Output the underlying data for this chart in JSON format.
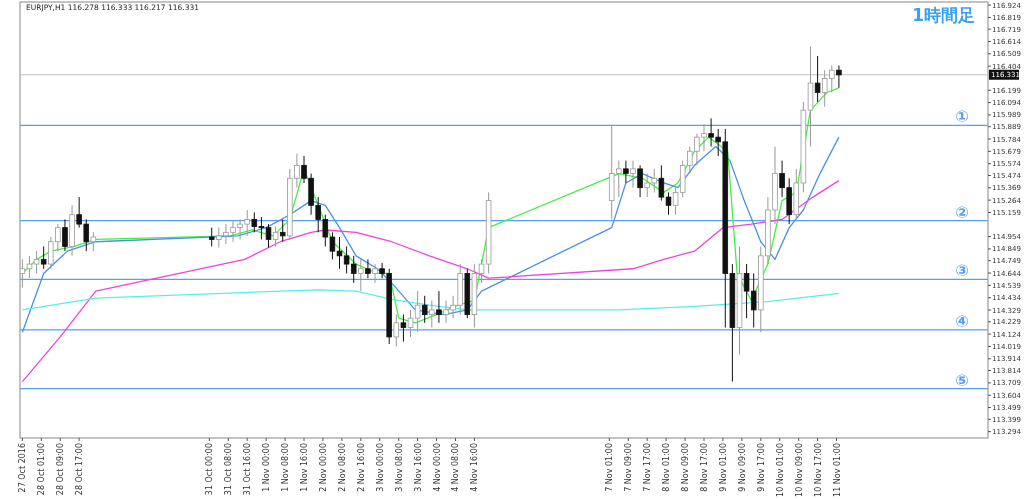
{
  "chart_data": {
    "type": "candlestick",
    "title": "EURJPY,H1  116.278 116.333 116.217 116.331",
    "annotations": [
      "1時間足"
    ],
    "x": [
      "2016-10-27T17:00",
      "2016-10-27T20:00",
      "2016-10-27T23:00",
      "2016-10-28T02:00",
      "2016-10-28T05:00",
      "2016-10-28T08:00",
      "2016-10-28T11:00",
      "2016-10-28T14:00",
      "2016-10-28T17:00",
      "2016-10-28T20:00",
      "2016-10-28T23:00",
      "2016-10-31T01:00",
      "2016-10-31T04:00",
      "2016-10-31T07:00",
      "2016-10-31T10:00",
      "2016-10-31T13:00",
      "2016-10-31T16:00",
      "2016-10-31T19:00",
      "2016-10-31T22:00",
      "2016-11-01T01:00",
      "2016-11-01T04:00",
      "2016-11-01T07:00",
      "2016-11-01T10:00",
      "2016-11-01T13:00",
      "2016-11-01T16:00",
      "2016-11-01T19:00",
      "2016-11-01T22:00",
      "2016-11-02T01:00",
      "2016-11-02T04:00",
      "2016-11-02T07:00",
      "2016-11-02T10:00",
      "2016-11-02T13:00",
      "2016-11-02T16:00",
      "2016-11-02T19:00",
      "2016-11-02T22:00",
      "2016-11-03T01:00",
      "2016-11-03T04:00",
      "2016-11-03T07:00",
      "2016-11-03T10:00",
      "2016-11-03T13:00",
      "2016-11-03T16:00",
      "2016-11-03T19:00",
      "2016-11-03T22:00",
      "2016-11-04T01:00",
      "2016-11-04T04:00",
      "2016-11-04T07:00",
      "2016-11-04T10:00",
      "2016-11-04T13:00",
      "2016-11-04T16:00",
      "2016-11-04T19:00",
      "2016-11-04T22:00",
      "2016-11-07T02:00",
      "2016-11-07T05:00",
      "2016-11-07T08:00",
      "2016-11-07T11:00",
      "2016-11-07T14:00",
      "2016-11-07T17:00",
      "2016-11-07T20:00",
      "2016-11-07T23:00",
      "2016-11-08T02:00",
      "2016-11-08T05:00",
      "2016-11-08T08:00",
      "2016-11-08T11:00",
      "2016-11-08T14:00",
      "2016-11-08T17:00",
      "2016-11-08T20:00",
      "2016-11-08T23:00",
      "2016-11-09T02:00",
      "2016-11-09T05:00",
      "2016-11-09T08:00",
      "2016-11-09T11:00",
      "2016-11-09T14:00",
      "2016-11-09T17:00",
      "2016-11-09T20:00",
      "2016-11-09T23:00",
      "2016-11-10T02:00",
      "2016-11-10T05:00",
      "2016-11-10T08:00",
      "2016-11-10T11:00",
      "2016-11-10T14:00",
      "2016-11-10T17:00",
      "2016-11-10T20:00",
      "2016-11-10T23:00",
      "2016-11-11T02:00"
    ],
    "ohlc": [
      [
        114.64,
        114.76,
        114.52,
        114.68
      ],
      [
        114.68,
        114.79,
        114.6,
        114.72
      ],
      [
        114.72,
        114.83,
        114.64,
        114.76
      ],
      [
        114.76,
        114.87,
        114.68,
        114.72
      ],
      [
        114.72,
        114.95,
        114.68,
        114.91
      ],
      [
        114.91,
        115.06,
        114.83,
        115.03
      ],
      [
        115.03,
        115.1,
        114.83,
        114.87
      ],
      [
        114.87,
        115.22,
        114.79,
        115.14
      ],
      [
        115.14,
        115.29,
        115.03,
        115.06
      ],
      [
        115.06,
        115.1,
        114.83,
        114.91
      ],
      [
        114.91,
        114.99,
        114.83,
        114.95
      ],
      [
        114.95,
        115.03,
        114.87,
        114.93
      ],
      [
        114.93,
        115.03,
        114.86,
        114.96
      ],
      [
        114.96,
        115.06,
        114.89,
        114.99
      ],
      [
        114.99,
        115.09,
        114.91,
        115.03
      ],
      [
        115.03,
        115.1,
        114.93,
        115.06
      ],
      [
        115.06,
        115.18,
        114.96,
        115.1
      ],
      [
        115.1,
        115.16,
        114.99,
        115.04
      ],
      [
        115.04,
        115.12,
        114.93,
        115.03
      ],
      [
        115.03,
        115.06,
        114.86,
        114.93
      ],
      [
        114.93,
        115.04,
        114.87,
        114.99
      ],
      [
        114.99,
        115.1,
        114.91,
        114.96
      ],
      [
        114.96,
        115.53,
        114.93,
        115.45
      ],
      [
        115.45,
        115.66,
        115.37,
        115.56
      ],
      [
        115.56,
        115.64,
        115.41,
        115.45
      ],
      [
        115.45,
        115.49,
        115.14,
        115.22
      ],
      [
        115.22,
        115.29,
        114.99,
        115.1
      ],
      [
        115.1,
        115.14,
        114.87,
        114.95
      ],
      [
        114.95,
        114.99,
        114.76,
        114.83
      ],
      [
        114.83,
        114.95,
        114.68,
        114.79
      ],
      [
        114.79,
        114.87,
        114.64,
        114.72
      ],
      [
        114.72,
        114.79,
        114.56,
        114.64
      ],
      [
        114.64,
        114.76,
        114.49,
        114.68
      ],
      [
        114.68,
        114.76,
        114.6,
        114.64
      ],
      [
        114.64,
        114.72,
        114.56,
        114.68
      ],
      [
        114.68,
        114.73,
        114.6,
        114.64
      ],
      [
        114.64,
        114.68,
        114.04,
        114.1
      ],
      [
        114.1,
        114.29,
        114.02,
        114.22
      ],
      [
        114.22,
        114.29,
        114.06,
        114.18
      ],
      [
        114.18,
        114.33,
        114.1,
        114.26
      ],
      [
        114.26,
        114.49,
        114.14,
        114.37
      ],
      [
        114.37,
        114.45,
        114.22,
        114.29
      ],
      [
        114.29,
        114.41,
        114.18,
        114.33
      ],
      [
        114.33,
        114.49,
        114.22,
        114.29
      ],
      [
        114.29,
        114.41,
        114.22,
        114.33
      ],
      [
        114.33,
        114.45,
        114.26,
        114.37
      ],
      [
        114.37,
        114.72,
        114.29,
        114.64
      ],
      [
        114.64,
        114.68,
        114.26,
        114.29
      ],
      [
        114.29,
        114.72,
        114.18,
        114.64
      ],
      [
        114.64,
        114.76,
        114.56,
        114.72
      ],
      [
        114.72,
        115.33,
        114.64,
        115.26
      ],
      [
        115.26,
        115.9,
        115.1,
        115.49
      ],
      [
        115.49,
        115.6,
        115.29,
        115.53
      ],
      [
        115.53,
        115.6,
        115.41,
        115.49
      ],
      [
        115.49,
        115.6,
        115.37,
        115.53
      ],
      [
        115.53,
        115.56,
        115.29,
        115.37
      ],
      [
        115.37,
        115.49,
        115.29,
        115.41
      ],
      [
        115.41,
        115.53,
        115.33,
        115.45
      ],
      [
        115.45,
        115.56,
        115.26,
        115.29
      ],
      [
        115.29,
        115.33,
        115.14,
        115.22
      ],
      [
        115.22,
        115.37,
        115.14,
        115.33
      ],
      [
        115.33,
        115.6,
        115.29,
        115.56
      ],
      [
        115.56,
        115.72,
        115.49,
        115.68
      ],
      [
        115.68,
        115.83,
        115.56,
        115.8
      ],
      [
        115.8,
        115.91,
        115.68,
        115.83
      ],
      [
        115.83,
        115.96,
        115.72,
        115.8
      ],
      [
        115.8,
        115.87,
        115.64,
        115.76
      ],
      [
        115.76,
        115.87,
        114.18,
        114.64
      ],
      [
        114.64,
        114.72,
        113.72,
        114.18
      ],
      [
        114.18,
        114.87,
        113.95,
        114.64
      ],
      [
        114.64,
        114.72,
        114.26,
        114.49
      ],
      [
        114.49,
        114.64,
        114.18,
        114.33
      ],
      [
        114.33,
        114.87,
        114.14,
        114.79
      ],
      [
        114.79,
        115.29,
        114.72,
        115.18
      ],
      [
        115.18,
        115.72,
        115.06,
        115.49
      ],
      [
        115.49,
        115.6,
        115.29,
        115.37
      ],
      [
        115.37,
        115.45,
        115.06,
        115.14
      ],
      [
        115.14,
        115.53,
        115.1,
        115.41
      ],
      [
        115.41,
        116.1,
        115.33,
        116.03
      ],
      [
        116.03,
        116.57,
        115.72,
        116.26
      ],
      [
        116.26,
        116.49,
        116.1,
        116.18
      ],
      [
        116.18,
        116.37,
        116.06,
        116.3
      ],
      [
        116.3,
        116.41,
        116.18,
        116.37
      ],
      [
        116.37,
        116.41,
        116.22,
        116.33
      ]
    ],
    "series": [
      {
        "type": "line",
        "color": "#44ee44",
        "x": [
          "2016-10-27T17:00",
          "2016-10-27T23:00",
          "2016-10-28T05:00",
          "2016-10-28T15:00",
          "2016-10-29T00:00",
          "2016-10-31T09:00",
          "2016-10-31T18:00",
          "2016-11-01T03:00",
          "2016-11-01T10:00",
          "2016-11-01T16:00",
          "2016-11-01T22:00",
          "2016-11-02T04:00",
          "2016-11-02T14:00",
          "2016-11-02T23:00",
          "2016-11-03T04:00",
          "2016-11-03T08:00",
          "2016-11-03T15:00",
          "2016-11-04T00:00",
          "2016-11-04T09:00",
          "2016-11-04T16:00",
          "2016-11-04T22:00",
          "2016-11-07T05:00",
          "2016-11-07T15:00",
          "2016-11-08T00:00",
          "2016-11-08T06:00",
          "2016-11-08T13:00",
          "2016-11-08T19:00",
          "2016-11-09T03:00",
          "2016-11-09T07:00",
          "2016-11-09T13:00",
          "2016-11-09T20:00",
          "2016-11-10T02:00",
          "2016-11-10T08:00",
          "2016-11-10T14:00",
          "2016-11-10T21:00",
          "2016-11-11T02:00"
        ],
        "values": [
          114.64,
          114.76,
          114.83,
          114.87,
          114.93,
          114.96,
          115.01,
          114.96,
          115.1,
          115.53,
          115.22,
          114.91,
          114.72,
          114.64,
          114.64,
          114.26,
          114.22,
          114.29,
          114.37,
          114.41,
          115.03,
          115.49,
          115.45,
          115.33,
          115.41,
          115.68,
          115.8,
          115.68,
          114.64,
          114.41,
          114.72,
          115.26,
          115.33,
          116.03,
          116.18,
          116.22
        ]
      },
      {
        "type": "line",
        "color": "#4a90e8",
        "x": [
          "2016-10-27T17:00",
          "2016-10-28T02:00",
          "2016-10-28T12:00",
          "2016-10-29T00:00",
          "2016-10-31T12:00",
          "2016-11-01T00:00",
          "2016-11-01T10:00",
          "2016-11-01T19:00",
          "2016-11-02T01:00",
          "2016-11-02T07:00",
          "2016-11-02T14:00",
          "2016-11-02T23:00",
          "2016-11-03T05:00",
          "2016-11-03T15:00",
          "2016-11-04T03:00",
          "2016-11-04T13:00",
          "2016-11-04T19:00",
          "2016-11-07T02:00",
          "2016-11-07T08:00",
          "2016-11-07T15:00",
          "2016-11-08T00:00",
          "2016-11-08T06:00",
          "2016-11-08T13:00",
          "2016-11-08T22:00",
          "2016-11-09T04:00",
          "2016-11-09T10:00",
          "2016-11-09T17:00",
          "2016-11-09T23:00",
          "2016-11-10T05:00",
          "2016-11-10T11:00",
          "2016-11-10T18:00",
          "2016-11-11T02:00"
        ],
        "values": [
          114.14,
          114.64,
          114.83,
          114.91,
          114.96,
          115.03,
          115.14,
          115.26,
          115.22,
          115.03,
          114.79,
          114.68,
          114.56,
          114.33,
          114.29,
          114.33,
          114.49,
          115.03,
          115.41,
          115.49,
          115.41,
          115.37,
          115.56,
          115.72,
          115.6,
          115.26,
          114.91,
          114.76,
          115.03,
          115.18,
          115.49,
          115.8
        ]
      },
      {
        "type": "line",
        "color": "#ee44dd",
        "x": [
          "2016-10-27T17:00",
          "2016-10-28T09:00",
          "2016-10-29T00:00",
          "2016-10-31T15:00",
          "2016-11-01T06:00",
          "2016-11-01T19:00",
          "2016-11-02T01:00",
          "2016-11-02T14:00",
          "2016-11-03T05:00",
          "2016-11-03T21:00",
          "2016-11-04T13:00",
          "2016-11-04T22:00",
          "2016-11-07T11:00",
          "2016-11-08T00:00",
          "2016-11-08T13:00",
          "2016-11-09T01:00",
          "2016-11-09T13:00",
          "2016-11-10T02:00",
          "2016-11-10T15:00",
          "2016-11-11T02:00"
        ],
        "values": [
          113.72,
          114.1,
          114.49,
          114.76,
          114.91,
          114.99,
          115.01,
          114.99,
          114.91,
          114.79,
          114.68,
          114.6,
          114.68,
          114.76,
          114.83,
          115.03,
          115.06,
          115.1,
          115.29,
          115.43
        ]
      },
      {
        "type": "line",
        "color": "#55eeee",
        "x": [
          "2016-10-27T17:00",
          "2016-10-29T00:00",
          "2016-11-01T06:00",
          "2016-11-01T22:00",
          "2016-11-02T14:00",
          "2016-11-03T05:00",
          "2016-11-03T21:00",
          "2016-11-04T13:00",
          "2016-11-07T05:00",
          "2016-11-08T13:00",
          "2016-11-09T20:00",
          "2016-11-11T02:00"
        ],
        "values": [
          114.33,
          114.43,
          114.49,
          114.5,
          114.49,
          114.42,
          114.37,
          114.33,
          114.33,
          114.36,
          114.4,
          114.47
        ]
      }
    ],
    "ylim": [
      113.24,
      116.95
    ],
    "yticks": [
      116.924,
      116.819,
      116.719,
      116.614,
      116.509,
      116.404,
      116.199,
      116.094,
      115.989,
      115.889,
      115.784,
      115.679,
      115.574,
      115.474,
      115.369,
      115.264,
      115.159,
      114.954,
      114.849,
      114.749,
      114.644,
      114.539,
      114.434,
      114.329,
      114.229,
      114.124,
      114.019,
      113.914,
      113.814,
      113.709,
      113.604,
      113.499,
      113.399,
      113.294
    ],
    "xlim": [
      "2016-10-27T16:00",
      "2016-11-13T17:00"
    ],
    "xticks": [
      {
        "value": "2016-10-27T17:00",
        "label": "27 Oct 2016"
      },
      {
        "value": "2016-10-28T01:00",
        "label": "28 Oct 01:00"
      },
      {
        "value": "2016-10-28T09:00",
        "label": "28 Oct 09:00"
      },
      {
        "value": "2016-10-28T17:00",
        "label": "28 Oct 17:00"
      },
      {
        "value": "2016-10-31T00:00",
        "label": "31 Oct 00:00"
      },
      {
        "value": "2016-10-31T08:00",
        "label": "31 Oct 08:00"
      },
      {
        "value": "2016-10-31T16:00",
        "label": "31 Oct 16:00"
      },
      {
        "value": "2016-11-01T00:00",
        "label": "1 Nov 00:00"
      },
      {
        "value": "2016-11-01T08:00",
        "label": "1 Nov 08:00"
      },
      {
        "value": "2016-11-01T16:00",
        "label": "1 Nov 16:00"
      },
      {
        "value": "2016-11-02T00:00",
        "label": "2 Nov 00:00"
      },
      {
        "value": "2016-11-02T08:00",
        "label": "2 Nov 08:00"
      },
      {
        "value": "2016-11-02T16:00",
        "label": "2 Nov 16:00"
      },
      {
        "value": "2016-11-03T00:00",
        "label": "3 Nov 00:00"
      },
      {
        "value": "2016-11-03T08:00",
        "label": "3 Nov 08:00"
      },
      {
        "value": "2016-11-03T16:00",
        "label": "3 Nov 16:00"
      },
      {
        "value": "2016-11-04T00:00",
        "label": "4 Nov 00:00"
      },
      {
        "value": "2016-11-04T08:00",
        "label": "4 Nov 08:00"
      },
      {
        "value": "2016-11-04T16:00",
        "label": "4 Nov 16:00"
      },
      {
        "value": "2016-11-07T01:00",
        "label": "7 Nov 01:00"
      },
      {
        "value": "2016-11-07T09:00",
        "label": "7 Nov 09:00"
      },
      {
        "value": "2016-11-07T17:00",
        "label": "7 Nov 17:00"
      },
      {
        "value": "2016-11-08T01:00",
        "label": "8 Nov 01:00"
      },
      {
        "value": "2016-11-08T09:00",
        "label": "8 Nov 09:00"
      },
      {
        "value": "2016-11-08T17:00",
        "label": "8 Nov 17:00"
      },
      {
        "value": "2016-11-09T01:00",
        "label": "9 Nov 01:00"
      },
      {
        "value": "2016-11-09T09:00",
        "label": "9 Nov 09:00"
      },
      {
        "value": "2016-11-09T17:00",
        "label": "9 Nov 17:00"
      },
      {
        "value": "2016-11-10T01:00",
        "label": "10 Nov 01:00"
      },
      {
        "value": "2016-11-10T09:00",
        "label": "10 Nov 09:00"
      },
      {
        "value": "2016-11-10T17:00",
        "label": "10 Nov 17:00"
      },
      {
        "value": "2016-11-11T01:00",
        "label": "11 Nov 01:00"
      }
    ],
    "ref_lines": [
      {
        "axis": "y",
        "value": 115.9,
        "label": "①",
        "color": "#5a9ef0"
      },
      {
        "axis": "y",
        "value": 115.09,
        "label": "②",
        "color": "#5a9ef0"
      },
      {
        "axis": "y",
        "value": 114.59,
        "label": "③",
        "color": "#5a9ef0"
      },
      {
        "axis": "y",
        "value": 114.16,
        "label": "④",
        "color": "#5a9ef0"
      },
      {
        "axis": "y",
        "value": 113.66,
        "label": "⑤",
        "color": "#5a9ef0"
      },
      {
        "axis": "y",
        "value": 116.331,
        "label": "116.331",
        "color": "#c0c0c0"
      }
    ]
  }
}
